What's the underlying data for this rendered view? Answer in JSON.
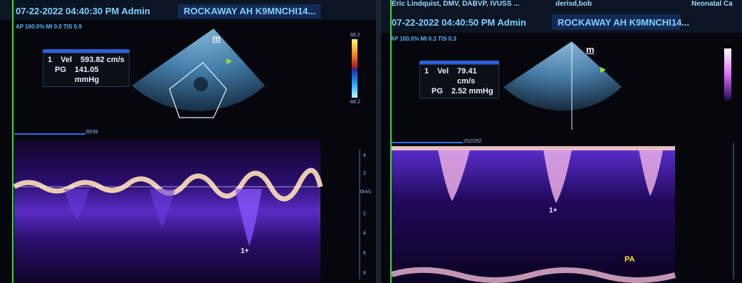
{
  "left": {
    "header_datetime": "07-22-2022 04:40:30 PM Admin",
    "header_patient": "ROCKAWAY AH K9MNCHI14...",
    "params": "AP 100.0% MI 0.0 TIS 0.9",
    "measurement": {
      "index": "1",
      "vel_label": "Vel",
      "vel_value": "593.82 cm/s",
      "pg_label": "PG",
      "pg_value": "141.05 mmHg"
    },
    "scale_top": "66.2",
    "scale_bottom": "-66.2",
    "sweep_label": "39/39",
    "probe_marker": "m",
    "cursor_label": "1",
    "velocity_ticks": [
      "4",
      "2",
      "0m/s",
      "2",
      "4",
      "6",
      "8"
    ]
  },
  "right": {
    "header_operator": "Eric Lindquist, DMV, DABVP, IVUSS ...",
    "header_extra": "derisd,bob",
    "header_dept": "Neonatal Ca",
    "header_datetime": "07-22-2022 04:40:50 PM Admin",
    "header_patient": "ROCKAWAY AH K9MNCHI14...",
    "params": "AP 100.0% MI 0.3 TIS 0.3",
    "measurement": {
      "index": "1",
      "vel_label": "Vel",
      "vel_value": "79.41 cm/s",
      "pg_label": "PG",
      "pg_value": "2.52 mmHg"
    },
    "sweep_label": "252/252",
    "probe_marker": "m",
    "cursor_label": "1",
    "vessel_label": "PA",
    "colors": {
      "green_marker": "#33dd33",
      "header_text": "#7fd0ff",
      "label_yellow": "#ffe22a"
    }
  }
}
